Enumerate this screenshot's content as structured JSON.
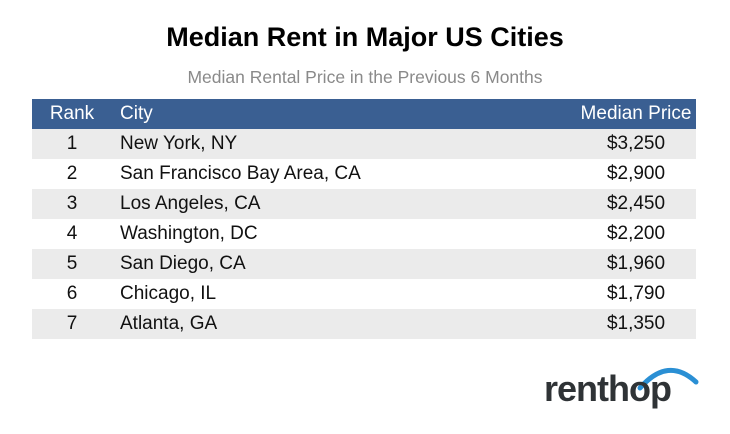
{
  "chart_data": {
    "type": "table",
    "title": "Median Rent in Major US Cities",
    "subtitle": "Median Rental Price in the Previous 6 Months",
    "columns": [
      "Rank",
      "City",
      "Median Price"
    ],
    "rows": [
      {
        "rank": "1",
        "city": "New York, NY",
        "price": "$3,250"
      },
      {
        "rank": "2",
        "city": "San Francisco Bay Area, CA",
        "price": "$2,900"
      },
      {
        "rank": "3",
        "city": "Los Angeles, CA",
        "price": "$2,450"
      },
      {
        "rank": "4",
        "city": "Washington, DC",
        "price": "$2,200"
      },
      {
        "rank": "5",
        "city": "San Diego, CA",
        "price": "$1,960"
      },
      {
        "rank": "6",
        "city": "Chicago, IL",
        "price": "$1,790"
      },
      {
        "rank": "7",
        "city": "Atlanta, GA",
        "price": "$1,350"
      }
    ]
  },
  "brand": {
    "logo_text": "renthop",
    "header_color": "#3a5f92",
    "stripe_color": "#ebebeb",
    "arc_color": "#2a8fd4"
  }
}
